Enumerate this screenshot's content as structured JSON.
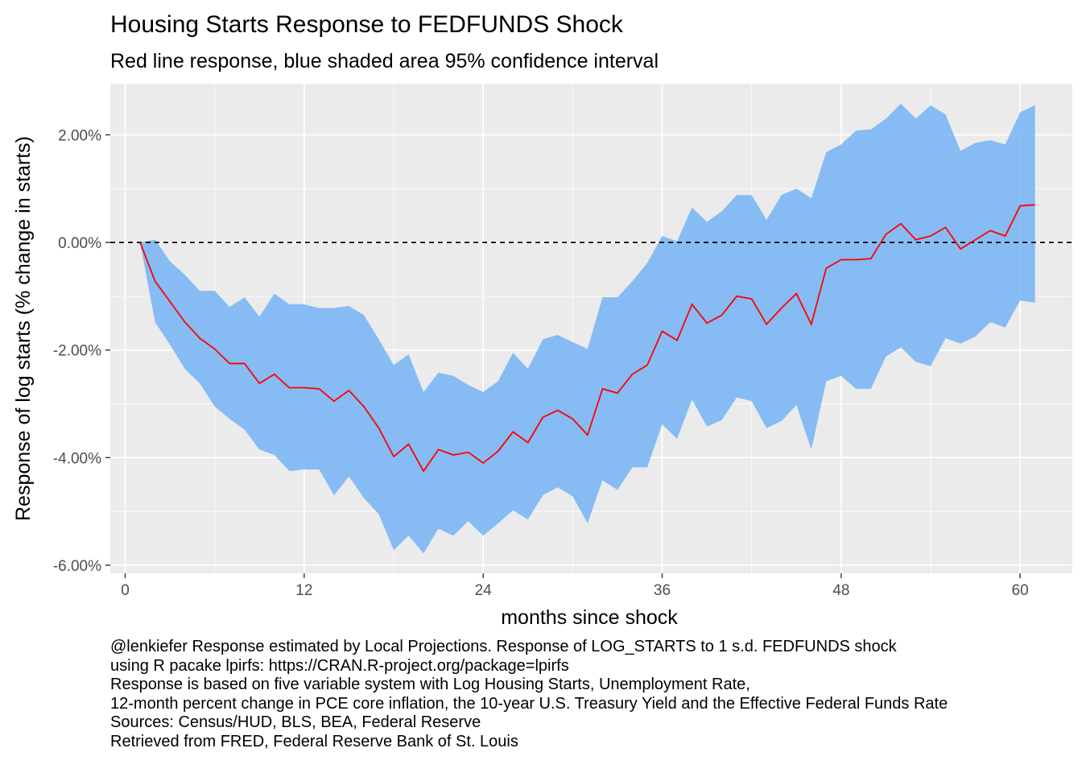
{
  "title": "Housing Starts Response to FEDFUNDS Shock",
  "subtitle": "Red line response, blue shaded area 95% confidence interval",
  "caption_lines": [
    "@lenkiefer Response estimated by Local Projections. Response of LOG_STARTS to 1 s.d. FEDFUNDS shock",
    "using R pacake lpirfs: https://CRAN.R-project.org/package=lpirfs",
    "Response is based on five variable system with Log Housing Starts, Unemployment Rate,",
    "12-month percent change in PCE core inflation, the 10-year U.S. Treasury Yield and the Effective Federal Funds Rate",
    "Sources: Census/HUD, BLS, BEA, Federal Reserve",
    "Retrieved from FRED, Federal Reserve Bank of St. Louis"
  ],
  "colors": {
    "panel_background": "#ebebeb",
    "grid": "#ffffff",
    "ribbon": "#74b3f5",
    "response_line": "#ff0000",
    "zero_line": "#000000"
  },
  "chart_data": {
    "type": "area",
    "title": "Housing Starts Response to FEDFUNDS Shock",
    "subtitle": "Red line response, blue shaded area 95% confidence interval",
    "xlabel": "months since shock",
    "ylabel": "Response of log starts (% change in starts)",
    "xlim": [
      -1,
      63.5
    ],
    "ylim": [
      -6.15,
      2.95
    ],
    "x_ticks": [
      0,
      12,
      24,
      36,
      48,
      60
    ],
    "x_tick_labels": [
      "0",
      "12",
      "24",
      "36",
      "48",
      "60"
    ],
    "y_ticks": [
      -6,
      -4,
      -2,
      0,
      2
    ],
    "y_tick_labels": [
      "-6.00%",
      "-4.00%",
      "-2.00%",
      "0.00%",
      "2.00%"
    ],
    "grid": true,
    "legend": "none",
    "reference_line": {
      "y": 0,
      "style": "dashed"
    },
    "x": [
      1,
      2,
      3,
      4,
      5,
      6,
      7,
      8,
      9,
      10,
      11,
      12,
      13,
      14,
      15,
      16,
      17,
      18,
      19,
      20,
      21,
      22,
      23,
      24,
      25,
      26,
      27,
      28,
      29,
      30,
      31,
      32,
      33,
      34,
      35,
      36,
      37,
      38,
      39,
      40,
      41,
      42,
      43,
      44,
      45,
      46,
      47,
      48,
      49,
      50,
      51,
      52,
      53,
      54,
      55,
      56,
      57,
      58,
      59,
      60,
      61
    ],
    "series": [
      {
        "name": "Response",
        "values": [
          0,
          -0.72,
          -1.1,
          -1.48,
          -1.78,
          -1.98,
          -2.25,
          -2.25,
          -2.62,
          -2.45,
          -2.7,
          -2.7,
          -2.72,
          -2.95,
          -2.75,
          -3.05,
          -3.45,
          -3.98,
          -3.75,
          -4.25,
          -3.85,
          -3.95,
          -3.9,
          -4.1,
          -3.88,
          -3.52,
          -3.72,
          -3.25,
          -3.12,
          -3.28,
          -3.58,
          -2.72,
          -2.8,
          -2.45,
          -2.28,
          -1.65,
          -1.82,
          -1.15,
          -1.5,
          -1.35,
          -1.0,
          -1.05,
          -1.52,
          -1.22,
          -0.95,
          -1.52,
          -0.48,
          -0.32,
          -0.32,
          -0.3,
          0.15,
          0.35,
          0.05,
          0.12,
          0.28,
          -0.12,
          0.05,
          0.22,
          0.12,
          0.68,
          0.7
        ]
      },
      {
        "name": "Upper 95%",
        "values": [
          0,
          0.05,
          -0.35,
          -0.6,
          -0.9,
          -0.9,
          -1.2,
          -1.02,
          -1.38,
          -0.95,
          -1.15,
          -1.15,
          -1.22,
          -1.22,
          -1.18,
          -1.35,
          -1.8,
          -2.28,
          -2.08,
          -2.78,
          -2.42,
          -2.48,
          -2.65,
          -2.78,
          -2.58,
          -2.05,
          -2.35,
          -1.8,
          -1.72,
          -1.85,
          -1.98,
          -1.02,
          -1.02,
          -0.72,
          -0.38,
          0.12,
          0.02,
          0.65,
          0.38,
          0.58,
          0.88,
          0.88,
          0.42,
          0.88,
          1.0,
          0.82,
          1.68,
          1.82,
          2.08,
          2.1,
          2.3,
          2.58,
          2.3,
          2.55,
          2.38,
          1.7,
          1.85,
          1.9,
          1.82,
          2.42,
          2.55
        ]
      },
      {
        "name": "Lower 95%",
        "values": [
          0,
          -1.48,
          -1.9,
          -2.35,
          -2.62,
          -3.05,
          -3.28,
          -3.48,
          -3.85,
          -3.95,
          -4.25,
          -4.22,
          -4.22,
          -4.7,
          -4.35,
          -4.75,
          -5.05,
          -5.72,
          -5.45,
          -5.78,
          -5.32,
          -5.45,
          -5.18,
          -5.45,
          -5.22,
          -4.98,
          -5.15,
          -4.7,
          -4.55,
          -4.72,
          -5.22,
          -4.42,
          -4.6,
          -4.18,
          -4.18,
          -3.38,
          -3.65,
          -2.92,
          -3.42,
          -3.3,
          -2.88,
          -2.95,
          -3.45,
          -3.32,
          -3.02,
          -3.85,
          -2.58,
          -2.48,
          -2.72,
          -2.72,
          -2.12,
          -1.95,
          -2.22,
          -2.3,
          -1.78,
          -1.88,
          -1.75,
          -1.48,
          -1.58,
          -1.08,
          -1.12
        ]
      }
    ]
  }
}
